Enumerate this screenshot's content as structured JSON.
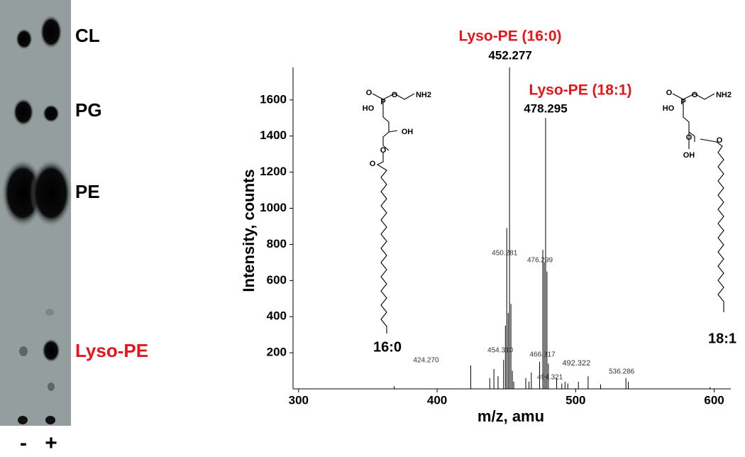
{
  "tlc": {
    "bands": [
      "CL",
      "PG",
      "PE",
      "Lyso-PE"
    ],
    "lanes": [
      "-",
      "+"
    ]
  },
  "chart_data": {
    "type": "stick",
    "x_label": "m/z, amu",
    "y_label": "Intensity, counts",
    "annotations": [
      "Lyso-PE (16:0)",
      "Lyso-PE (18:1)"
    ],
    "x": [
      369,
      424.27,
      438,
      441,
      444,
      448,
      449.3,
      450.281,
      451.3,
      452.277,
      453.28,
      454.31,
      455.3,
      464,
      466.317,
      468,
      474,
      476.299,
      477.3,
      478.295,
      479.3,
      480.3,
      486.3,
      490,
      492.322,
      494.321,
      502,
      509,
      518,
      536.286,
      538,
      597
    ],
    "values": [
      15,
      130,
      60,
      110,
      70,
      160,
      350,
      890,
      420,
      1780,
      470,
      100,
      40,
      60,
      40,
      90,
      150,
      770,
      700,
      1500,
      650,
      140,
      60,
      30,
      40,
      30,
      40,
      70,
      25,
      60,
      40,
      10
    ],
    "color": "#000000",
    "peak_labels": [
      {
        "value": 424.27,
        "label": "424.270"
      },
      {
        "value": 450.281,
        "label": "450.281"
      },
      452.277,
      {
        "value": 454.31,
        "label": "454.310"
      },
      466.317,
      476.299,
      478.295,
      492.322,
      494.321,
      536.286
    ],
    "xlim": [
      296,
      612
    ],
    "xticks": [
      300,
      400,
      500,
      600
    ],
    "ylim": [
      0,
      1780
    ],
    "yticks": [
      200,
      400,
      600,
      800,
      1000,
      1200,
      1400,
      1600
    ],
    "structures": [
      {
        "atoms": [
          "O",
          "P",
          "HO",
          "O",
          "NH2",
          "OH",
          "O",
          "O"
        ],
        "chain": "16:0"
      },
      {
        "atoms": [
          "O",
          "P",
          "HO",
          "O",
          "NH2",
          "O",
          "OH",
          "O"
        ],
        "chain": "18:1"
      }
    ]
  }
}
